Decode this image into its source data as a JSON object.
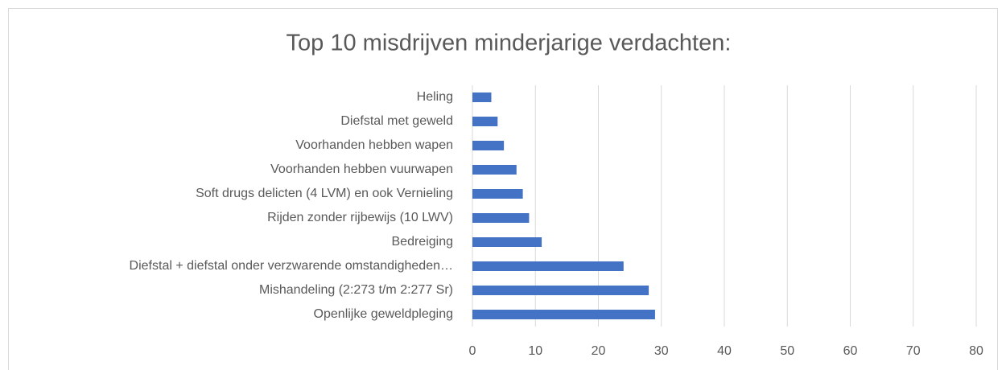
{
  "chart_data": {
    "type": "bar",
    "orientation": "horizontal",
    "title": "Top 10 misdrijven minderjarige verdachten:",
    "categories": [
      "Heling",
      "Diefstal met geweld",
      "Voorhanden hebben wapen",
      "Voorhanden hebben vuurwapen",
      "Soft drugs delicten (4 LVM) en ook Vernieling",
      "Rijden zonder rijbewijs (10 LWV)",
      "Bedreiging",
      "Diefstal + diefstal onder verzwarende omstandigheden…",
      "Mishandeling (2:273 t/m 2:277 Sr)",
      "Openlijke geweldpleging"
    ],
    "values": [
      3,
      4,
      5,
      7,
      8,
      9,
      11,
      24,
      28,
      29
    ],
    "color": "#4472c4",
    "xlim": [
      0,
      80
    ],
    "xticks": [
      0,
      10,
      20,
      30,
      40,
      50,
      60,
      70,
      80
    ],
    "grid": true
  }
}
